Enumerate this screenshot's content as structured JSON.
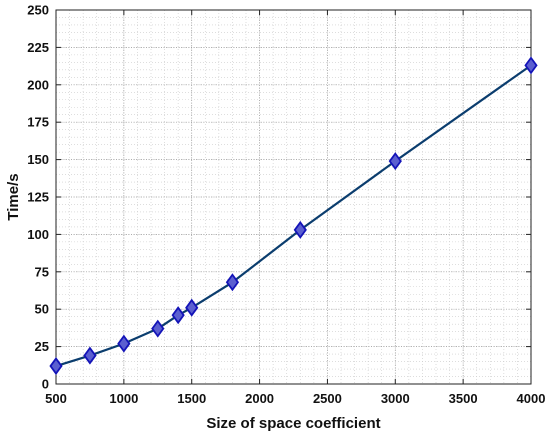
{
  "chart_data": {
    "type": "line",
    "title": "",
    "xlabel": "Size of space coefficient",
    "ylabel": "Time/s",
    "xlim": [
      500,
      4000
    ],
    "ylim": [
      0,
      250
    ],
    "grid": true,
    "grid_style": "major-and-minor-dotted",
    "x_ticks": [
      500,
      1000,
      1500,
      2000,
      2500,
      3000,
      3500,
      4000
    ],
    "y_ticks": [
      0,
      25,
      50,
      75,
      100,
      125,
      150,
      175,
      200,
      225,
      250
    ],
    "x_tick_labels": [
      "500",
      "1000",
      "1500",
      "2000",
      "2500",
      "3000",
      "3500",
      "4000"
    ],
    "y_tick_labels": [
      "0",
      "25",
      "50",
      "75",
      "100",
      "125",
      "150",
      "175",
      "200",
      "225",
      "250"
    ],
    "series": [
      {
        "x": [
          500,
          750,
          1000,
          1250,
          1400,
          1500,
          1800,
          2300,
          3000,
          4000
        ],
        "y": [
          12,
          19,
          27,
          37,
          46,
          51,
          68,
          103,
          149,
          213
        ],
        "line_color": "#0b3d6e",
        "marker": "diamond",
        "marker_fill": "#5b5fd0",
        "marker_edge": "#1414b8"
      }
    ]
  }
}
